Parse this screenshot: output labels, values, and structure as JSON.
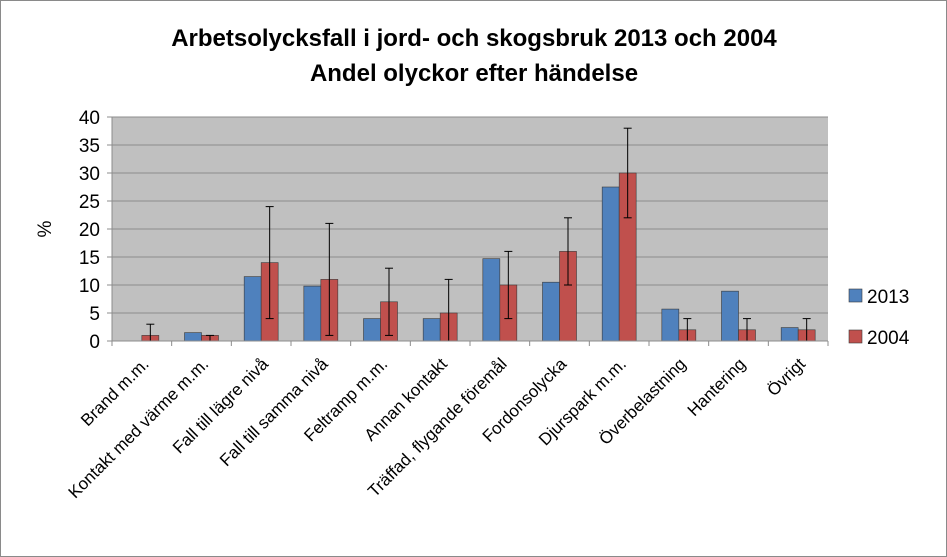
{
  "chart_data": {
    "type": "bar",
    "title": "Arbetsolycksfall i jord- och skogsbruk 2013 och 2004",
    "subtitle": "Andel olyckor efter händelse",
    "ylabel": "%",
    "xlabel": "",
    "ylim": [
      0,
      40
    ],
    "yticks": [
      "0",
      "5",
      "10",
      "15",
      "20",
      "25",
      "30",
      "35",
      "40"
    ],
    "categories": [
      "Brand m.m.",
      "Kontakt med värme m.m.",
      "Fall  till lägre nivå",
      "Fall  till samma nivå",
      "Feltramp m.m.",
      "Annan kontakt",
      "Träffad, flygande föremål",
      "Fordonsolycka",
      "Djurspark m.m.",
      "Överbelastning",
      "Hantering",
      "Övrigt"
    ],
    "series": [
      {
        "name": "2013",
        "color": "#4f81bd",
        "values": [
          0,
          1.5,
          11.5,
          9.8,
          4,
          4,
          14.7,
          10.5,
          27.5,
          5.7,
          8.9,
          2.4
        ]
      },
      {
        "name": "2004",
        "color": "#c0504d",
        "values": [
          1,
          1,
          14,
          11,
          7,
          5,
          10,
          16,
          30,
          2,
          2,
          2
        ],
        "error_low": [
          0,
          0,
          4,
          1,
          1,
          0,
          4,
          10,
          22,
          0,
          0,
          0
        ],
        "error_high": [
          3,
          1,
          24,
          21,
          13,
          11,
          16,
          22,
          38,
          4,
          4,
          4
        ]
      }
    ],
    "grid": true,
    "legend": "right",
    "plot_background": "#c0c0c0"
  }
}
